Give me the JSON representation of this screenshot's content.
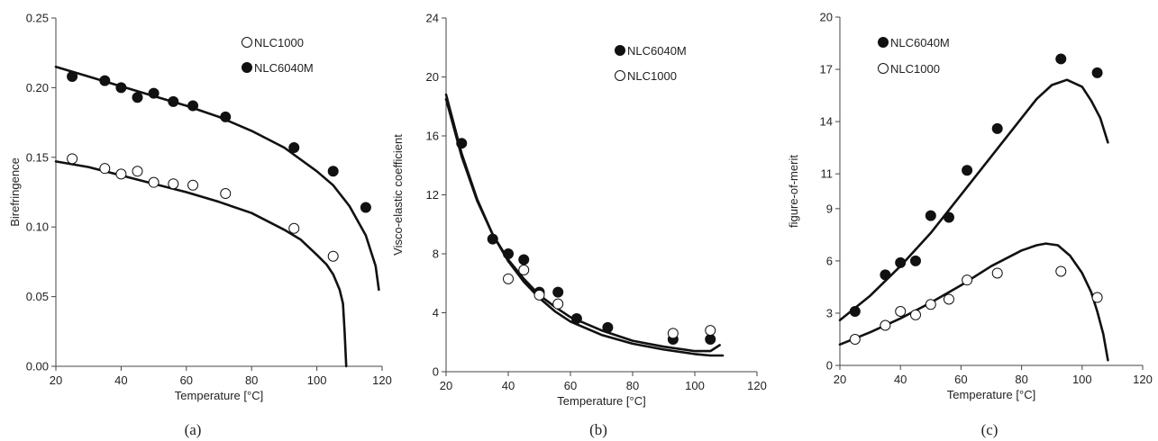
{
  "chart_data": [
    {
      "type": "scatter",
      "caption": "(a)",
      "xlabel": "Temperature [°C]",
      "ylabel": "Birefringence",
      "xlim": [
        20,
        120
      ],
      "ylim": [
        0,
        0.25
      ],
      "xticks": [
        20,
        40,
        60,
        80,
        100,
        120
      ],
      "yticks": [
        0.0,
        0.05,
        0.1,
        0.15,
        0.2,
        0.25
      ],
      "ytick_labels": [
        "0.00",
        "0.05",
        "0.10",
        "0.15",
        "0.20",
        "0.25"
      ],
      "grid": false,
      "legend_position": "top-right",
      "legend_order": [
        "NLC1000",
        "NLC6040M"
      ],
      "series": [
        {
          "name": "NLC6040M",
          "marker": "filled-circle",
          "x": [
            25,
            35,
            40,
            45,
            50,
            56,
            62,
            72,
            93,
            105,
            115
          ],
          "y": [
            0.208,
            0.205,
            0.2,
            0.193,
            0.196,
            0.19,
            0.187,
            0.179,
            0.157,
            0.14,
            0.114
          ],
          "fit": {
            "x": [
              20,
              30,
              40,
              50,
              60,
              70,
              80,
              90,
              100,
              105,
              110,
              115,
              118,
              119
            ],
            "y": [
              0.215,
              0.208,
              0.201,
              0.194,
              0.187,
              0.179,
              0.169,
              0.157,
              0.14,
              0.13,
              0.115,
              0.094,
              0.072,
              0.055
            ]
          }
        },
        {
          "name": "NLC1000",
          "marker": "open-circle",
          "x": [
            25,
            35,
            40,
            45,
            50,
            56,
            62,
            72,
            93,
            105
          ],
          "y": [
            0.149,
            0.142,
            0.138,
            0.14,
            0.132,
            0.131,
            0.13,
            0.124,
            0.099,
            0.079
          ],
          "fit": {
            "x": [
              20,
              30,
              40,
              50,
              60,
              70,
              80,
              90,
              95,
              100,
              103,
              105,
              107,
              108,
              108.5,
              109
            ],
            "y": [
              0.147,
              0.143,
              0.137,
              0.131,
              0.125,
              0.118,
              0.11,
              0.098,
              0.091,
              0.08,
              0.073,
              0.066,
              0.055,
              0.045,
              0.025,
              0.0
            ]
          }
        }
      ]
    },
    {
      "type": "scatter",
      "caption": "(b)",
      "xlabel": "Temperature [°C]",
      "ylabel": "Visco-elastic coefficient",
      "xlim": [
        20,
        120
      ],
      "ylim": [
        0,
        24
      ],
      "xticks": [
        20,
        40,
        60,
        80,
        100,
        120
      ],
      "yticks": [
        0,
        4,
        8,
        12,
        16,
        20,
        24
      ],
      "ytick_labels": [
        "0",
        "4",
        "8",
        "12",
        "16",
        "20",
        "24"
      ],
      "grid": false,
      "legend_position": "top-right",
      "legend_order": [
        "NLC6040M",
        "NLC1000"
      ],
      "series": [
        {
          "name": "NLC6040M",
          "marker": "filled-circle",
          "x": [
            25,
            35,
            40,
            45,
            50,
            56,
            62,
            72,
            93,
            105
          ],
          "y": [
            15.5,
            9.0,
            8.0,
            7.6,
            5.4,
            5.4,
            3.6,
            3.0,
            2.2,
            2.2
          ],
          "fit": {
            "x": [
              20,
              25,
              30,
              35,
              40,
              45,
              50,
              55,
              60,
              70,
              80,
              90,
              100,
              105,
              108
            ],
            "y": [
              18.5,
              14.6,
              11.6,
              9.3,
              7.6,
              6.3,
              5.2,
              4.4,
              3.7,
              2.8,
              2.1,
              1.7,
              1.4,
              1.4,
              1.8
            ]
          }
        },
        {
          "name": "NLC1000",
          "marker": "open-circle",
          "x": [
            40,
            45,
            50,
            56,
            93,
            105
          ],
          "y": [
            6.3,
            6.9,
            5.2,
            4.6,
            2.6,
            2.8
          ],
          "fit": {
            "x": [
              20,
              25,
              30,
              35,
              40,
              45,
              50,
              55,
              60,
              70,
              80,
              90,
              100,
              105,
              109
            ],
            "y": [
              18.8,
              14.8,
              11.7,
              9.3,
              7.5,
              6.1,
              5.0,
              4.1,
              3.4,
              2.5,
              1.9,
              1.5,
              1.2,
              1.1,
              1.1
            ]
          }
        }
      ]
    },
    {
      "type": "scatter",
      "caption": "(c)",
      "xlabel": "Temperature [°C]",
      "ylabel": "figure-of-merit",
      "xlim": [
        20,
        120
      ],
      "ylim": [
        0,
        20
      ],
      "xticks": [
        20,
        40,
        60,
        80,
        100,
        120
      ],
      "yticks": [
        0,
        3,
        6,
        9,
        11,
        14,
        17,
        20
      ],
      "ytick_labels": [
        "0",
        "3",
        "6",
        "9",
        "11",
        "14",
        "17",
        "20"
      ],
      "grid": false,
      "legend_position": "top-left",
      "legend_order": [
        "NLC6040M",
        "NLC1000"
      ],
      "series": [
        {
          "name": "NLC6040M",
          "marker": "filled-circle",
          "x": [
            25,
            35,
            40,
            45,
            50,
            56,
            62,
            72,
            93,
            105
          ],
          "y": [
            3.1,
            5.2,
            5.9,
            6.0,
            8.6,
            8.5,
            11.2,
            13.6,
            17.6,
            16.8
          ],
          "fit": {
            "x": [
              20,
              30,
              40,
              50,
              60,
              70,
              80,
              85,
              90,
              95,
              100,
              103,
              106,
              108.5
            ],
            "y": [
              2.6,
              4.0,
              5.7,
              7.6,
              9.8,
              12.0,
              14.2,
              15.3,
              16.1,
              16.4,
              16.0,
              15.2,
              14.2,
              12.8
            ]
          }
        },
        {
          "name": "NLC1000",
          "marker": "open-circle",
          "x": [
            25,
            35,
            40,
            45,
            50,
            56,
            62,
            72,
            93,
            105
          ],
          "y": [
            1.5,
            2.3,
            3.1,
            2.9,
            3.5,
            3.8,
            4.9,
            5.3,
            5.4,
            3.9
          ],
          "fit": {
            "x": [
              20,
              30,
              40,
              50,
              60,
              70,
              80,
              85,
              88,
              92,
              96,
              100,
              103,
              105,
              107,
              108.5
            ],
            "y": [
              1.2,
              1.9,
              2.7,
              3.6,
              4.6,
              5.7,
              6.6,
              6.9,
              7.0,
              6.9,
              6.3,
              5.3,
              4.2,
              3.1,
              1.8,
              0.3
            ]
          }
        }
      ]
    }
  ]
}
